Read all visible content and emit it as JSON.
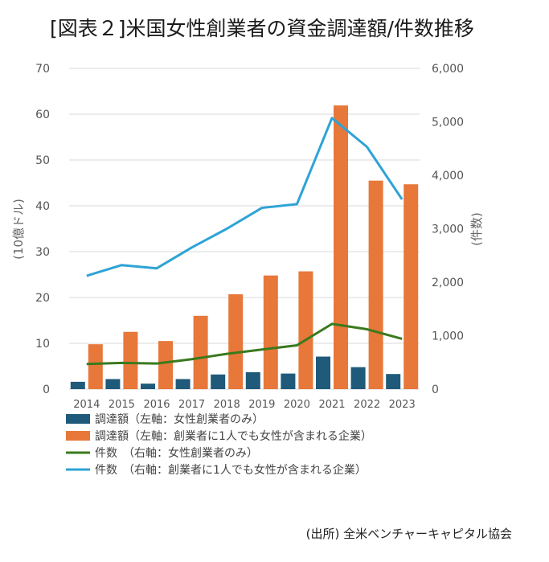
{
  "title": "[図表２]米国女性創業者の資金調達額/件数推移",
  "source": "(出所) 全米ベンチャーキャピタル協会",
  "chart_data": {
    "type": "bar+line",
    "categories": [
      "2014",
      "2015",
      "2016",
      "2017",
      "2018",
      "2019",
      "2020",
      "2021",
      "2022",
      "2023"
    ],
    "y_left": {
      "label": "(10億ドル)",
      "range": [
        0,
        70
      ],
      "ticks": [
        "0",
        "10",
        "20",
        "30",
        "40",
        "50",
        "60",
        "70"
      ]
    },
    "y_right": {
      "label": "(件数)",
      "range": [
        0,
        6000
      ],
      "ticks": [
        "0",
        "1,000",
        "2,000",
        "3,000",
        "4,000",
        "5,000",
        "6,000"
      ]
    },
    "series": [
      {
        "name": "調達額（左軸：女性創業者のみ）",
        "type": "bar",
        "axis": "left",
        "color": "#1f5a7a",
        "values": [
          1.6,
          2.2,
          1.2,
          2.2,
          3.2,
          3.7,
          3.4,
          7.1,
          4.8,
          3.3
        ]
      },
      {
        "name": "調達額（左軸：創業者に1人でも女性が含まれる企業）",
        "type": "bar",
        "axis": "left",
        "color": "#e8773a",
        "values": [
          9.8,
          12.5,
          10.5,
          16.0,
          20.7,
          24.8,
          25.7,
          61.9,
          45.5,
          44.7
        ]
      },
      {
        "name": "件数　（右軸：女性創業者のみ）",
        "type": "line",
        "axis": "right",
        "color": "#3a7a1e",
        "values": [
          470,
          490,
          480,
          560,
          660,
          740,
          820,
          1220,
          1120,
          940
        ]
      },
      {
        "name": "件数　（右軸：創業者に1人でも女性が含まれる企業）",
        "type": "line",
        "axis": "right",
        "color": "#2ea3d6",
        "values": [
          2120,
          2320,
          2260,
          2650,
          3000,
          3390,
          3460,
          5070,
          4530,
          3550
        ]
      }
    ]
  }
}
